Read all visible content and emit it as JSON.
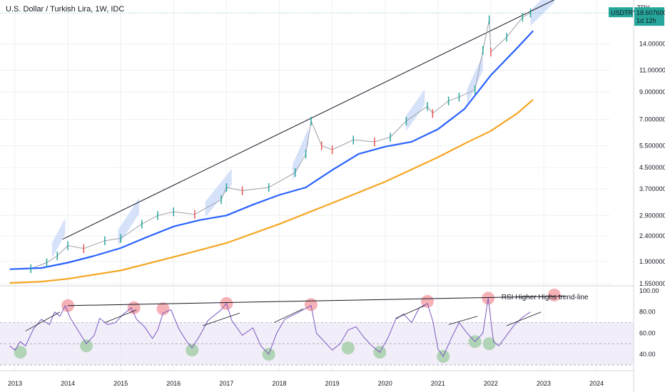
{
  "header": {
    "title": "U.S. Dollar / Turkish Lira, 1W, IDC"
  },
  "price_panel": {
    "currency": "TRY",
    "badge_symbol": "USDTRY",
    "badge_price": "18.607600",
    "badge_countdown": "1d 12h",
    "badge_color": "#26a69a"
  },
  "rsi_panel": {
    "annotation": "RSI Higher Highs trend-line"
  },
  "colors": {
    "ma_fast": "#2962ff",
    "ma_slow": "#f5a623",
    "candle_up": "#26a69a",
    "candle_down": "#ef5350",
    "rsi_line": "#7e57c2",
    "rsi_band": "#ede7f6",
    "channel_fill": "#c5d5f7",
    "high_marker": "#f4a3a9",
    "low_marker": "#a5cfa9",
    "grid": "#eef0f3"
  },
  "chart_data": [
    {
      "type": "line",
      "title": "U.S. Dollar / Turkish Lira, 1W, IDC",
      "ylabel": "TRY",
      "scale": "log",
      "x_ticks": [
        "2013",
        "2014",
        "2015",
        "2016",
        "2017",
        "2018",
        "2019",
        "2020",
        "2021",
        "2022",
        "2023",
        "2024"
      ],
      "y_ticks": [
        "14.000000",
        "11.000000",
        "9.000000",
        "7.000000",
        "5.500000",
        "4.500000",
        "3.700000",
        "2.900000",
        "2.400000",
        "1.900000",
        "1.550000"
      ],
      "ylim": [
        1.55,
        19
      ],
      "series": [
        {
          "name": "USDTRY",
          "x": [
            2012.9,
            2013.3,
            2013.6,
            2013.8,
            2014.0,
            2014.3,
            2014.7,
            2015.0,
            2015.4,
            2015.7,
            2016.0,
            2016.4,
            2016.9,
            2017.0,
            2017.3,
            2017.8,
            2018.3,
            2018.5,
            2018.6,
            2018.8,
            2019.0,
            2019.4,
            2019.8,
            2020.1,
            2020.4,
            2020.8,
            2020.9,
            2021.2,
            2021.4,
            2021.7,
            2021.85,
            2021.97,
            2022.0,
            2022.3,
            2022.6,
            2022.75
          ],
          "y": [
            1.77,
            1.78,
            1.88,
            2.0,
            2.2,
            2.14,
            2.3,
            2.35,
            2.68,
            2.9,
            3.0,
            2.93,
            3.35,
            3.75,
            3.64,
            3.75,
            4.3,
            5.1,
            6.9,
            5.5,
            5.3,
            5.8,
            5.7,
            5.95,
            6.9,
            7.9,
            7.4,
            8.3,
            8.6,
            9.2,
            13.2,
            17.5,
            13.0,
            14.9,
            17.9,
            18.6
          ]
        },
        {
          "name": "Moving average (blue)",
          "x": [
            2012.9,
            2013.5,
            2014.0,
            2014.5,
            2015.0,
            2015.5,
            2016.0,
            2016.5,
            2017.0,
            2017.5,
            2018.0,
            2018.5,
            2019.0,
            2019.5,
            2020.0,
            2020.5,
            2021.0,
            2021.5,
            2022.0,
            2022.5,
            2022.8
          ],
          "y": [
            1.77,
            1.79,
            1.88,
            2.0,
            2.15,
            2.38,
            2.62,
            2.78,
            2.9,
            3.2,
            3.5,
            3.75,
            4.4,
            5.1,
            5.45,
            5.7,
            6.4,
            7.7,
            10.5,
            13.5,
            15.8
          ]
        },
        {
          "name": "Moving average (orange)",
          "x": [
            2012.9,
            2013.5,
            2014.0,
            2015.0,
            2016.0,
            2017.0,
            2018.0,
            2019.0,
            2020.0,
            2021.0,
            2021.5,
            2022.0,
            2022.5,
            2022.8
          ],
          "y": [
            1.56,
            1.58,
            1.62,
            1.75,
            1.98,
            2.25,
            2.68,
            3.25,
            3.95,
            4.95,
            5.6,
            6.3,
            7.4,
            8.4
          ]
        }
      ]
    },
    {
      "type": "line",
      "title": "RSI",
      "x_ticks": [
        "2013",
        "2014",
        "2015",
        "2016",
        "2017",
        "2018",
        "2019",
        "2020",
        "2021",
        "2022",
        "2023",
        "2024"
      ],
      "y_ticks": [
        "100.00",
        "80.00",
        "60.00",
        "40.00"
      ],
      "ylim": [
        30,
        100
      ],
      "series": [
        {
          "name": "RSI",
          "x": [
            2012.9,
            2013.0,
            2013.1,
            2013.2,
            2013.35,
            2013.5,
            2013.65,
            2013.75,
            2013.85,
            2013.95,
            2014.05,
            2014.2,
            2014.35,
            2014.5,
            2014.6,
            2014.75,
            2014.9,
            2015.05,
            2015.2,
            2015.3,
            2015.45,
            2015.6,
            2015.7,
            2015.8,
            2015.95,
            2016.1,
            2016.25,
            2016.35,
            2016.5,
            2016.65,
            2016.8,
            2016.9,
            2017.0,
            2017.1,
            2017.3,
            2017.5,
            2017.65,
            2017.8,
            2017.95,
            2018.1,
            2018.3,
            2018.45,
            2018.6,
            2018.7,
            2018.85,
            2019.0,
            2019.15,
            2019.3,
            2019.45,
            2019.6,
            2019.75,
            2019.9,
            2020.05,
            2020.2,
            2020.35,
            2020.5,
            2020.65,
            2020.8,
            2020.9,
            2021.0,
            2021.1,
            2021.25,
            2021.4,
            2021.55,
            2021.7,
            2021.85,
            2021.95,
            2022.05,
            2022.15,
            2022.3,
            2022.45,
            2022.6,
            2022.75
          ],
          "y": [
            48,
            44,
            52,
            48,
            64,
            73,
            68,
            80,
            76,
            86,
            74,
            62,
            50,
            58,
            74,
            68,
            70,
            78,
            84,
            73,
            66,
            55,
            63,
            79,
            82,
            64,
            52,
            46,
            58,
            72,
            78,
            82,
            88,
            72,
            58,
            65,
            48,
            40,
            60,
            73,
            78,
            82,
            86,
            60,
            52,
            44,
            50,
            63,
            66,
            56,
            48,
            42,
            55,
            73,
            78,
            70,
            84,
            88,
            72,
            45,
            38,
            55,
            70,
            60,
            52,
            60,
            93,
            52,
            48,
            58,
            68,
            75,
            80
          ]
        }
      ]
    }
  ]
}
